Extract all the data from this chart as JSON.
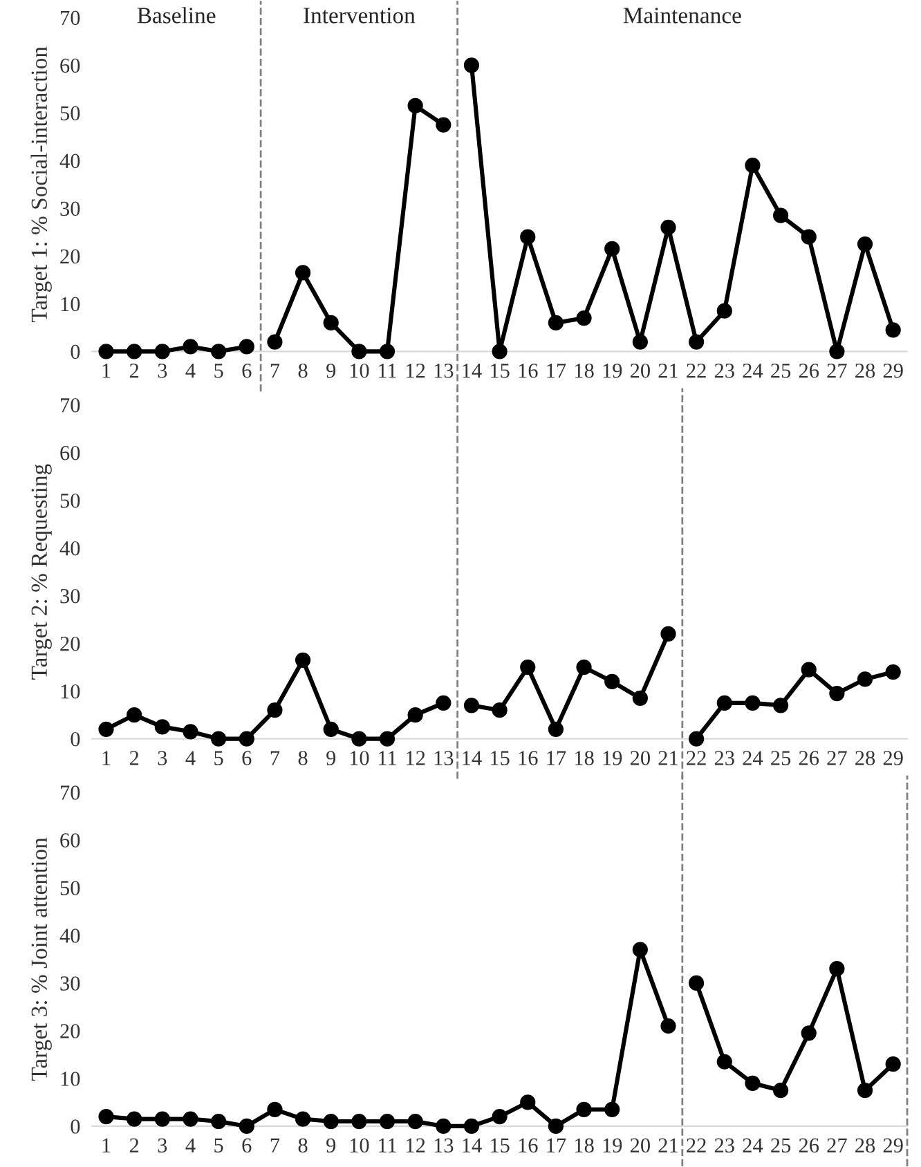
{
  "chart_data": [
    {
      "type": "line",
      "ylabel": "Target 1: % Social-interaction",
      "annotations": [
        "Baseline",
        "Intervention",
        "Maintenance"
      ],
      "x": [
        1,
        2,
        3,
        4,
        5,
        6,
        7,
        8,
        9,
        10,
        11,
        12,
        13,
        14,
        15,
        16,
        17,
        18,
        19,
        20,
        21,
        22,
        23,
        24,
        25,
        26,
        27,
        28,
        29
      ],
      "xlim": [
        0.5,
        29.5
      ],
      "xticks": [
        1,
        2,
        3,
        4,
        5,
        6,
        7,
        8,
        9,
        10,
        11,
        12,
        13,
        14,
        15,
        16,
        17,
        18,
        19,
        20,
        21,
        22,
        23,
        24,
        25,
        26,
        27,
        28,
        29
      ],
      "ylim": [
        0,
        70
      ],
      "yticks": [
        0,
        10,
        20,
        30,
        40,
        50,
        60,
        70
      ],
      "marker": "circle",
      "line_style": "solid",
      "grid": false,
      "ref_lines": [
        {
          "axis": "x",
          "value": 6.5,
          "line_style": "dashed",
          "color": "#808080"
        },
        {
          "axis": "x",
          "value": 13.5,
          "line_style": "dashed",
          "color": "#808080"
        }
      ],
      "series": [
        {
          "color": "#000000",
          "values": [
            0,
            0,
            0,
            1,
            0,
            1,
            null,
            null,
            null,
            null,
            null,
            null,
            null,
            null,
            null,
            null,
            null,
            null,
            null,
            null,
            null,
            null,
            null,
            null,
            null,
            null,
            null,
            null,
            null
          ]
        },
        {
          "color": "#000000",
          "values": [
            null,
            null,
            null,
            null,
            null,
            null,
            2,
            16.5,
            6,
            0,
            0,
            51.5,
            47.5,
            null,
            null,
            null,
            null,
            null,
            null,
            null,
            null,
            null,
            null,
            null,
            null,
            null,
            null,
            null,
            null
          ]
        },
        {
          "color": "#000000",
          "values": [
            null,
            null,
            null,
            null,
            null,
            null,
            null,
            null,
            null,
            null,
            null,
            null,
            null,
            60,
            0,
            24,
            6,
            7,
            21.5,
            2,
            26,
            2,
            8.5,
            39,
            28.5,
            24,
            0,
            22.5,
            4.5
          ]
        }
      ]
    },
    {
      "type": "line",
      "ylabel": "Target 2: % Requesting",
      "x": [
        1,
        2,
        3,
        4,
        5,
        6,
        7,
        8,
        9,
        10,
        11,
        12,
        13,
        14,
        15,
        16,
        17,
        18,
        19,
        20,
        21,
        22,
        23,
        24,
        25,
        26,
        27,
        28,
        29
      ],
      "xlim": [
        0.5,
        29.5
      ],
      "xticks": [
        1,
        2,
        3,
        4,
        5,
        6,
        7,
        8,
        9,
        10,
        11,
        12,
        13,
        14,
        15,
        16,
        17,
        18,
        19,
        20,
        21,
        22,
        23,
        24,
        25,
        26,
        27,
        28,
        29
      ],
      "ylim": [
        0,
        70
      ],
      "yticks": [
        0,
        10,
        20,
        30,
        40,
        50,
        60,
        70
      ],
      "marker": "circle",
      "line_style": "solid",
      "grid": false,
      "ref_lines": [
        {
          "axis": "x",
          "value": 13.5,
          "line_style": "dashed",
          "color": "#808080"
        },
        {
          "axis": "x",
          "value": 21.5,
          "line_style": "dashed",
          "color": "#808080"
        }
      ],
      "series": [
        {
          "color": "#000000",
          "values": [
            2,
            5,
            2.5,
            1.5,
            0,
            0,
            6,
            16.5,
            2,
            0,
            0,
            5,
            7.5,
            null,
            null,
            null,
            null,
            null,
            null,
            null,
            null,
            null,
            null,
            null,
            null,
            null,
            null,
            null,
            null
          ]
        },
        {
          "color": "#000000",
          "values": [
            null,
            null,
            null,
            null,
            null,
            null,
            null,
            null,
            null,
            null,
            null,
            null,
            null,
            7,
            6,
            15,
            2,
            15,
            12,
            8.5,
            22,
            null,
            null,
            null,
            null,
            null,
            null,
            null,
            null
          ]
        },
        {
          "color": "#000000",
          "values": [
            null,
            null,
            null,
            null,
            null,
            null,
            null,
            null,
            null,
            null,
            null,
            null,
            null,
            null,
            null,
            null,
            null,
            null,
            null,
            null,
            null,
            0,
            7.5,
            7.5,
            7,
            14.5,
            9.5,
            12.5,
            14
          ]
        }
      ]
    },
    {
      "type": "line",
      "ylabel": "Target 3: % Joint attention",
      "x": [
        1,
        2,
        3,
        4,
        5,
        6,
        7,
        8,
        9,
        10,
        11,
        12,
        13,
        14,
        15,
        16,
        17,
        18,
        19,
        20,
        21,
        22,
        23,
        24,
        25,
        26,
        27,
        28,
        29
      ],
      "xlim": [
        0.5,
        29.5
      ],
      "xticks": [
        1,
        2,
        3,
        4,
        5,
        6,
        7,
        8,
        9,
        10,
        11,
        12,
        13,
        14,
        15,
        16,
        17,
        18,
        19,
        20,
        21,
        22,
        23,
        24,
        25,
        26,
        27,
        28,
        29
      ],
      "ylim": [
        0,
        70
      ],
      "yticks": [
        0,
        10,
        20,
        30,
        40,
        50,
        60,
        70
      ],
      "marker": "circle",
      "line_style": "solid",
      "grid": false,
      "ref_lines": [
        {
          "axis": "x",
          "value": 21.5,
          "line_style": "dashed",
          "color": "#808080"
        },
        {
          "axis": "x",
          "value": 29.5,
          "line_style": "dashed",
          "color": "#808080"
        }
      ],
      "series": [
        {
          "color": "#000000",
          "values": [
            2,
            1.5,
            1.5,
            1.5,
            1,
            0,
            3.5,
            1.5,
            1,
            1,
            1,
            1,
            0,
            0,
            2,
            5,
            0,
            3.5,
            3.5,
            37,
            21,
            null,
            null,
            null,
            null,
            null,
            null,
            null,
            null
          ]
        },
        {
          "color": "#000000",
          "values": [
            null,
            null,
            null,
            null,
            null,
            null,
            null,
            null,
            null,
            null,
            null,
            null,
            null,
            null,
            null,
            null,
            null,
            null,
            null,
            null,
            null,
            30,
            13.5,
            9,
            7.5,
            19.5,
            33,
            7.5,
            13
          ]
        }
      ]
    }
  ]
}
